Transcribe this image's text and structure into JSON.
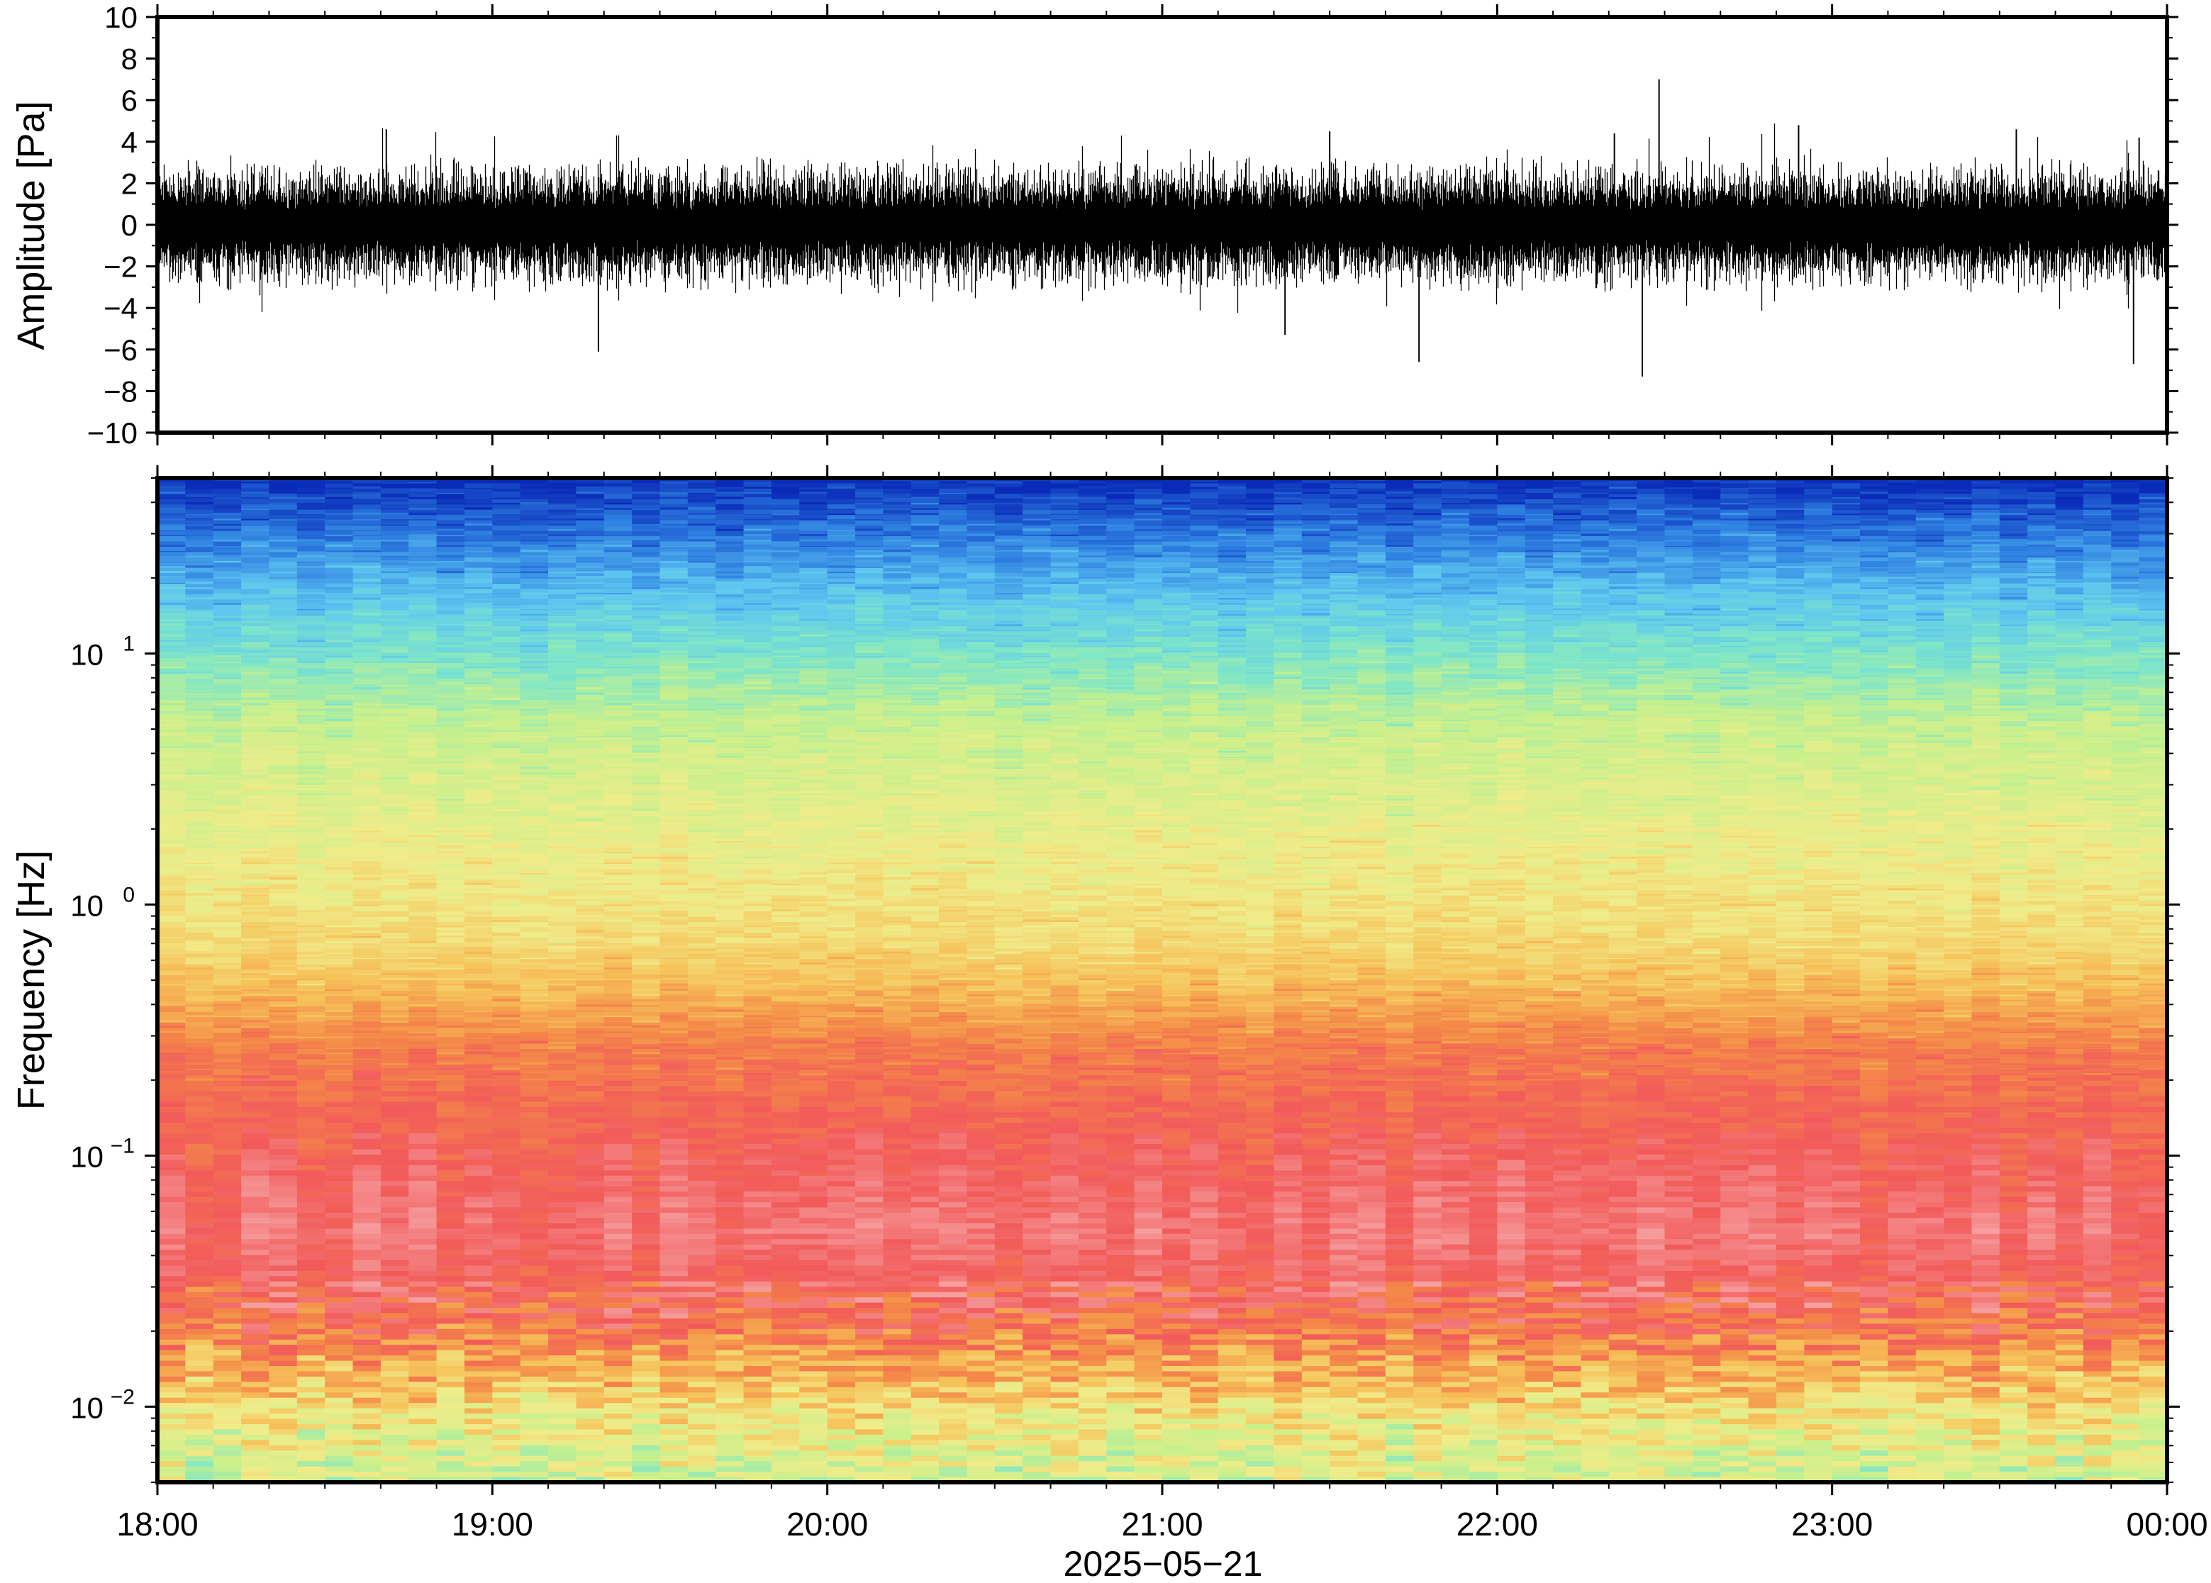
{
  "chart_data": [
    {
      "type": "line",
      "ylabel": "Amplitude [Pa]",
      "ylim": [
        -10,
        10
      ],
      "yticks": [
        "10",
        "8",
        "6",
        "4",
        "2",
        "0",
        "−2",
        "−4",
        "−6",
        "−8",
        "−10"
      ],
      "x_range": [
        "2025-05-21 18:00",
        "2025-05-22 00:00"
      ],
      "grid": false,
      "series": [
        {
          "values_description_free": true,
          "baseline": 0,
          "typical_envelope": [
            -3,
            3
          ],
          "peaks": [
            {
              "x": "2025-05-21 18:41",
              "y": 4.6
            },
            {
              "x": "2025-05-21 19:19",
              "y": -6.1
            },
            {
              "x": "2025-05-21 21:22",
              "y": -5.3
            },
            {
              "x": "2025-05-21 21:30",
              "y": 4.5
            },
            {
              "x": "2025-05-21 21:46",
              "y": -6.6
            },
            {
              "x": "2025-05-21 22:21",
              "y": 4.4
            },
            {
              "x": "2025-05-21 22:26",
              "y": -7.3
            },
            {
              "x": "2025-05-21 22:29",
              "y": 7.0
            },
            {
              "x": "2025-05-21 22:54",
              "y": 4.8
            },
            {
              "x": "2025-05-21 23:33",
              "y": 4.6
            },
            {
              "x": "2025-05-21 23:55",
              "y": 4.2
            },
            {
              "x": "2025-05-21 23:54",
              "y": -6.7
            }
          ]
        }
      ]
    },
    {
      "type": "heatmap",
      "ylabel": "Frequency [Hz]",
      "yscale": "log",
      "ylim": [
        0.005,
        50
      ],
      "yticks": [
        {
          "base": "10",
          "exp": "−2"
        },
        {
          "base": "10",
          "exp": "−1"
        },
        {
          "base": "10",
          "exp": "0"
        },
        {
          "base": "10",
          "exp": "1"
        }
      ],
      "xticks": [
        "18:00",
        "19:00",
        "20:00",
        "21:00",
        "22:00",
        "23:00",
        "00:00"
      ],
      "xlabel": "2025−05−21",
      "colormap": [
        "#0a2bb8",
        "#2d7de0",
        "#5ec6f0",
        "#7ee6c8",
        "#c8f08c",
        "#f0ec8a",
        "#f6c25a",
        "#f48a48",
        "#f25a5a",
        "#f6a0a0"
      ],
      "time_columns": 72,
      "colors": {
        "high_freq": "#0a2bb8",
        "mid_freq": "#e8ee90",
        "low_freq_band": "#f25a5a",
        "lowest_freq": "#9ae8b4"
      }
    }
  ]
}
